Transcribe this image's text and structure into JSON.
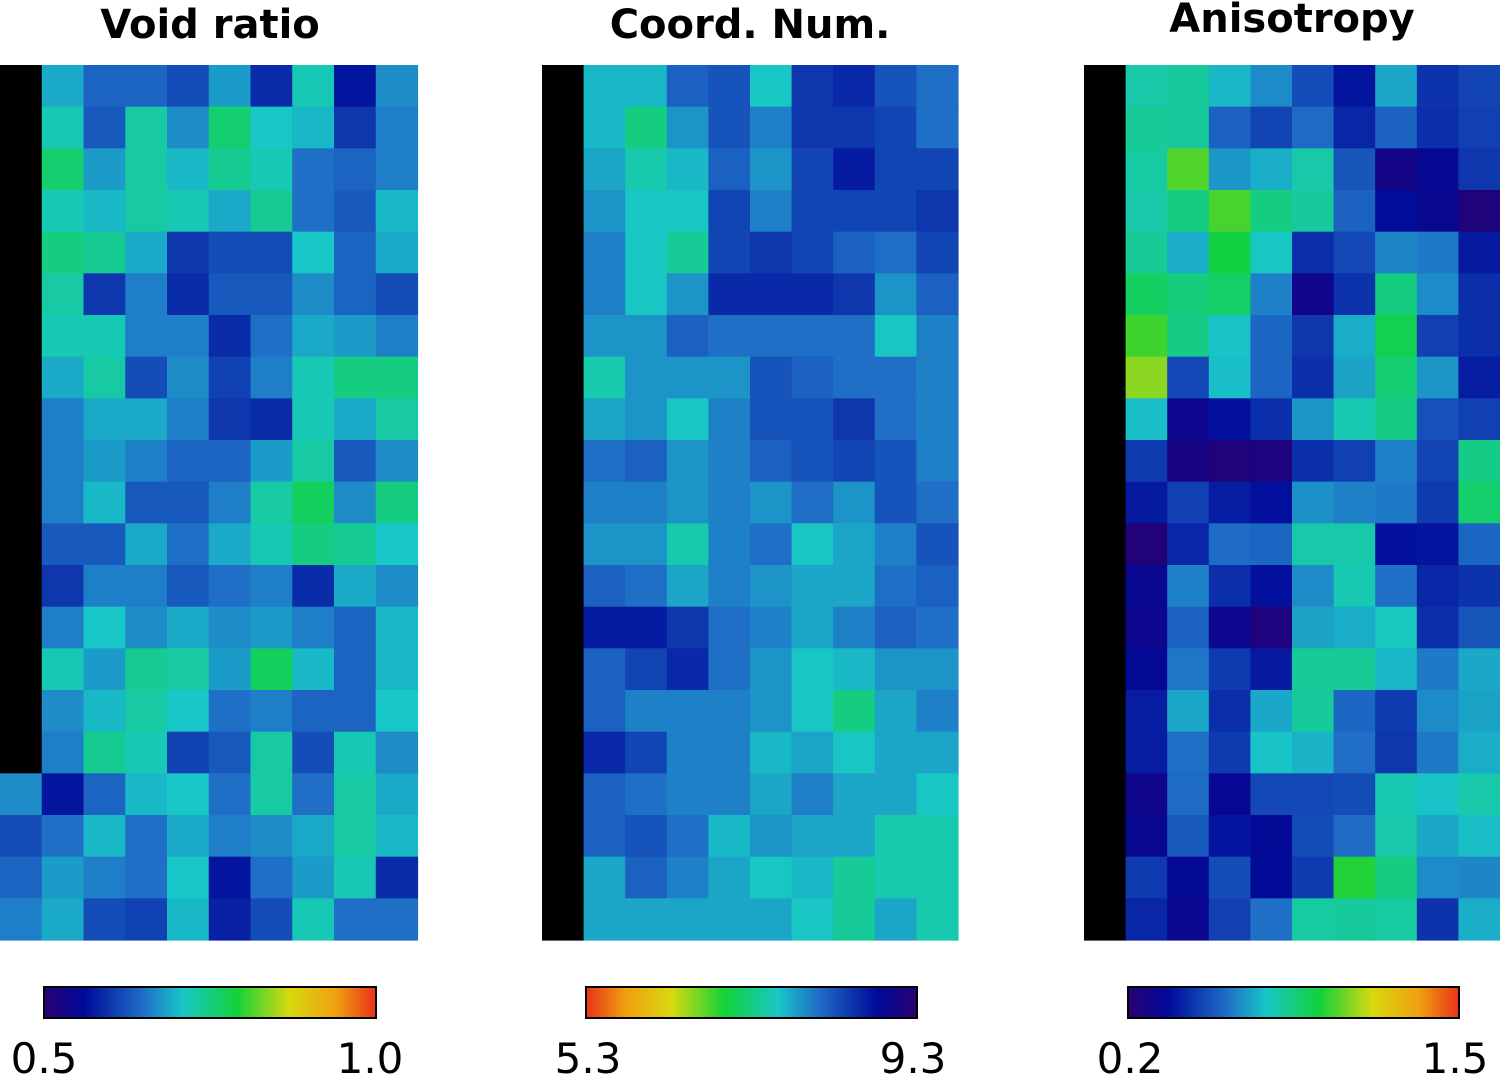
{
  "chart_data": [
    {
      "type": "heatmap",
      "title": "Void ratio",
      "rows": 21,
      "cols": 10,
      "mask": "black cells in column 1 (rows 1-17); white cells beyond column 9",
      "colormap": "rainbow (dark indigo → blue → teal → green → yellow → orange-red)",
      "colorbar": {
        "min_label": "0.5",
        "max_label": "1.0",
        "vmin": 0.5,
        "vmax": 1.0
      },
      "values": [
        [
          null,
          0.69,
          0.64,
          0.64,
          0.62,
          0.68,
          0.59,
          0.72,
          0.57,
          0.67
        ],
        [
          null,
          0.72,
          0.63,
          0.73,
          0.67,
          0.76,
          0.71,
          0.7,
          0.6,
          0.66
        ],
        [
          null,
          0.76,
          0.68,
          0.73,
          0.7,
          0.74,
          0.72,
          0.65,
          0.64,
          0.66
        ],
        [
          null,
          0.72,
          0.7,
          0.73,
          0.72,
          0.69,
          0.74,
          0.65,
          0.63,
          0.7
        ],
        [
          null,
          0.75,
          0.74,
          0.69,
          0.6,
          0.62,
          0.62,
          0.71,
          0.64,
          0.69
        ],
        [
          null,
          0.73,
          0.6,
          0.66,
          0.59,
          0.63,
          0.63,
          0.67,
          0.64,
          0.62
        ],
        [
          null,
          0.72,
          0.72,
          0.66,
          0.66,
          0.59,
          0.65,
          0.69,
          0.68,
          0.66
        ],
        [
          null,
          0.69,
          0.73,
          0.62,
          0.67,
          0.61,
          0.66,
          0.72,
          0.75,
          0.75
        ],
        [
          null,
          0.66,
          0.69,
          0.69,
          0.66,
          0.6,
          0.59,
          0.72,
          0.69,
          0.73
        ],
        [
          null,
          0.66,
          0.68,
          0.66,
          0.64,
          0.64,
          0.68,
          0.73,
          0.63,
          0.67
        ],
        [
          null,
          0.66,
          0.7,
          0.63,
          0.63,
          0.66,
          0.73,
          0.77,
          0.67,
          0.75
        ],
        [
          null,
          0.63,
          0.63,
          0.69,
          0.65,
          0.69,
          0.72,
          0.75,
          0.74,
          0.71
        ],
        [
          null,
          0.6,
          0.66,
          0.66,
          0.63,
          0.65,
          0.66,
          0.59,
          0.69,
          0.67
        ],
        [
          null,
          0.66,
          0.71,
          0.67,
          0.69,
          0.67,
          0.68,
          0.66,
          0.64,
          0.7
        ],
        [
          null,
          0.72,
          0.68,
          0.74,
          0.73,
          0.68,
          0.77,
          0.7,
          0.64,
          0.7
        ],
        [
          null,
          0.67,
          0.7,
          0.73,
          0.71,
          0.65,
          0.66,
          0.64,
          0.64,
          0.71
        ],
        [
          null,
          0.66,
          0.74,
          0.72,
          0.61,
          0.63,
          0.73,
          0.62,
          0.72,
          0.67
        ],
        [
          0.67,
          0.57,
          0.64,
          0.7,
          0.71,
          0.65,
          0.73,
          0.65,
          0.73,
          0.69
        ],
        [
          0.62,
          0.65,
          0.7,
          0.65,
          0.69,
          0.66,
          0.67,
          0.69,
          0.73,
          0.7
        ],
        [
          0.64,
          0.68,
          0.66,
          0.65,
          0.71,
          0.57,
          0.65,
          0.68,
          0.72,
          0.59
        ],
        [
          0.66,
          0.69,
          0.62,
          0.61,
          0.7,
          0.58,
          0.62,
          0.72,
          0.65,
          0.65
        ]
      ]
    },
    {
      "type": "heatmap",
      "title": "Coord. Num.",
      "rows": 21,
      "cols": 10,
      "mask": "black cells in column 1 (all rows)",
      "colormap": "reversed rainbow (orange-red → yellow → green → teal → blue → indigo)",
      "colorbar": {
        "min_label": "5.3",
        "max_label": "9.3",
        "vmin": 5.3,
        "vmax": 9.3
      },
      "values": [
        [
          null,
          7.7,
          7.7,
          8.2,
          8.3,
          7.6,
          8.5,
          8.6,
          8.3,
          8.1
        ],
        [
          null,
          7.7,
          7.3,
          7.9,
          8.3,
          8.0,
          8.5,
          8.5,
          8.4,
          8.1
        ],
        [
          null,
          7.8,
          7.5,
          7.7,
          8.2,
          7.9,
          8.4,
          8.7,
          8.4,
          8.4
        ],
        [
          null,
          7.9,
          7.6,
          7.6,
          8.4,
          8.0,
          8.4,
          8.4,
          8.4,
          8.5
        ],
        [
          null,
          8.0,
          7.6,
          7.4,
          8.4,
          8.5,
          8.4,
          8.2,
          8.1,
          8.4
        ],
        [
          null,
          8.0,
          7.6,
          7.9,
          8.6,
          8.6,
          8.6,
          8.5,
          7.9,
          8.2
        ],
        [
          null,
          7.9,
          7.9,
          8.2,
          8.1,
          8.1,
          8.1,
          8.1,
          7.6,
          8.0
        ],
        [
          null,
          7.5,
          7.9,
          7.9,
          7.9,
          8.3,
          8.2,
          8.1,
          8.1,
          8.0
        ],
        [
          null,
          7.8,
          7.9,
          7.6,
          8.0,
          8.3,
          8.3,
          8.5,
          8.1,
          8.0
        ],
        [
          null,
          8.1,
          8.2,
          7.9,
          8.0,
          8.2,
          8.3,
          8.4,
          8.3,
          8.0
        ],
        [
          null,
          8.0,
          8.0,
          7.9,
          8.0,
          7.9,
          8.1,
          7.9,
          8.3,
          8.1
        ],
        [
          null,
          7.9,
          7.9,
          7.5,
          8.0,
          8.1,
          7.6,
          7.8,
          8.0,
          8.3
        ],
        [
          null,
          8.2,
          8.1,
          7.8,
          8.0,
          7.9,
          7.8,
          7.8,
          8.1,
          8.2
        ],
        [
          null,
          8.7,
          8.7,
          8.5,
          8.1,
          8.0,
          7.8,
          8.0,
          8.2,
          8.1
        ],
        [
          null,
          8.2,
          8.4,
          8.6,
          8.1,
          7.9,
          7.6,
          7.7,
          7.9,
          7.9
        ],
        [
          null,
          8.2,
          8.0,
          8.0,
          8.0,
          7.9,
          7.6,
          7.3,
          7.8,
          8.0
        ],
        [
          null,
          8.6,
          8.4,
          8.0,
          8.0,
          7.7,
          7.8,
          7.6,
          7.8,
          7.8
        ],
        [
          null,
          8.2,
          8.1,
          8.0,
          8.0,
          7.8,
          8.0,
          7.8,
          7.8,
          7.6
        ],
        [
          null,
          8.2,
          8.3,
          8.1,
          7.7,
          7.9,
          7.8,
          7.8,
          7.5,
          7.5
        ],
        [
          null,
          7.8,
          8.2,
          8.0,
          7.8,
          7.6,
          7.7,
          7.4,
          7.5,
          7.5
        ],
        [
          null,
          7.8,
          7.8,
          7.8,
          7.8,
          7.8,
          7.6,
          7.4,
          7.8,
          7.5
        ]
      ]
    },
    {
      "type": "heatmap",
      "title": "Anisotropy",
      "rows": 21,
      "cols": 10,
      "mask": "black cells in column 1 (all rows)",
      "colormap": "rainbow (dark indigo → blue → teal → green → yellow → orange-red)",
      "colorbar": {
        "min_label": "0.2",
        "max_label": "1.5",
        "vmin": 0.2,
        "vmax": 1.5
      },
      "values": [
        [
          null,
          0.79,
          0.81,
          0.72,
          0.64,
          0.51,
          0.38,
          0.69,
          0.45,
          0.49
        ],
        [
          null,
          0.82,
          0.81,
          0.56,
          0.49,
          0.58,
          0.42,
          0.56,
          0.44,
          0.48
        ],
        [
          null,
          0.8,
          1.02,
          0.66,
          0.7,
          0.79,
          0.53,
          0.28,
          0.33,
          0.46
        ],
        [
          null,
          0.79,
          0.85,
          1.01,
          0.85,
          0.81,
          0.56,
          0.36,
          0.32,
          0.24
        ],
        [
          null,
          0.82,
          0.7,
          0.94,
          0.75,
          0.44,
          0.5,
          0.63,
          0.61,
          0.39
        ],
        [
          null,
          0.9,
          0.86,
          0.89,
          0.62,
          0.3,
          0.45,
          0.85,
          0.64,
          0.44
        ],
        [
          null,
          1.0,
          0.84,
          0.74,
          0.57,
          0.46,
          0.7,
          0.92,
          0.48,
          0.44
        ],
        [
          null,
          1.08,
          0.5,
          0.73,
          0.57,
          0.44,
          0.68,
          0.87,
          0.66,
          0.4
        ],
        [
          null,
          0.73,
          0.31,
          0.37,
          0.44,
          0.66,
          0.78,
          0.84,
          0.52,
          0.48
        ],
        [
          null,
          0.47,
          0.27,
          0.24,
          0.25,
          0.44,
          0.48,
          0.62,
          0.49,
          0.84
        ],
        [
          null,
          0.39,
          0.48,
          0.4,
          0.37,
          0.65,
          0.62,
          0.61,
          0.47,
          0.88
        ],
        [
          null,
          0.23,
          0.42,
          0.58,
          0.57,
          0.79,
          0.79,
          0.37,
          0.38,
          0.57
        ],
        [
          null,
          0.32,
          0.62,
          0.44,
          0.37,
          0.64,
          0.78,
          0.59,
          0.42,
          0.45
        ],
        [
          null,
          0.31,
          0.56,
          0.31,
          0.25,
          0.68,
          0.7,
          0.76,
          0.44,
          0.53
        ],
        [
          null,
          0.34,
          0.6,
          0.47,
          0.39,
          0.82,
          0.82,
          0.72,
          0.61,
          0.69
        ],
        [
          null,
          0.4,
          0.69,
          0.44,
          0.69,
          0.81,
          0.57,
          0.47,
          0.64,
          0.68
        ],
        [
          null,
          0.4,
          0.59,
          0.47,
          0.74,
          0.71,
          0.59,
          0.46,
          0.61,
          0.7
        ],
        [
          null,
          0.3,
          0.58,
          0.33,
          0.5,
          0.5,
          0.51,
          0.78,
          0.74,
          0.79
        ],
        [
          null,
          0.32,
          0.54,
          0.38,
          0.34,
          0.51,
          0.58,
          0.79,
          0.69,
          0.73
        ],
        [
          null,
          0.47,
          0.34,
          0.51,
          0.35,
          0.47,
          0.97,
          0.85,
          0.64,
          0.63
        ],
        [
          null,
          0.42,
          0.32,
          0.48,
          0.59,
          0.8,
          0.81,
          0.8,
          0.45,
          0.7
        ]
      ]
    }
  ]
}
